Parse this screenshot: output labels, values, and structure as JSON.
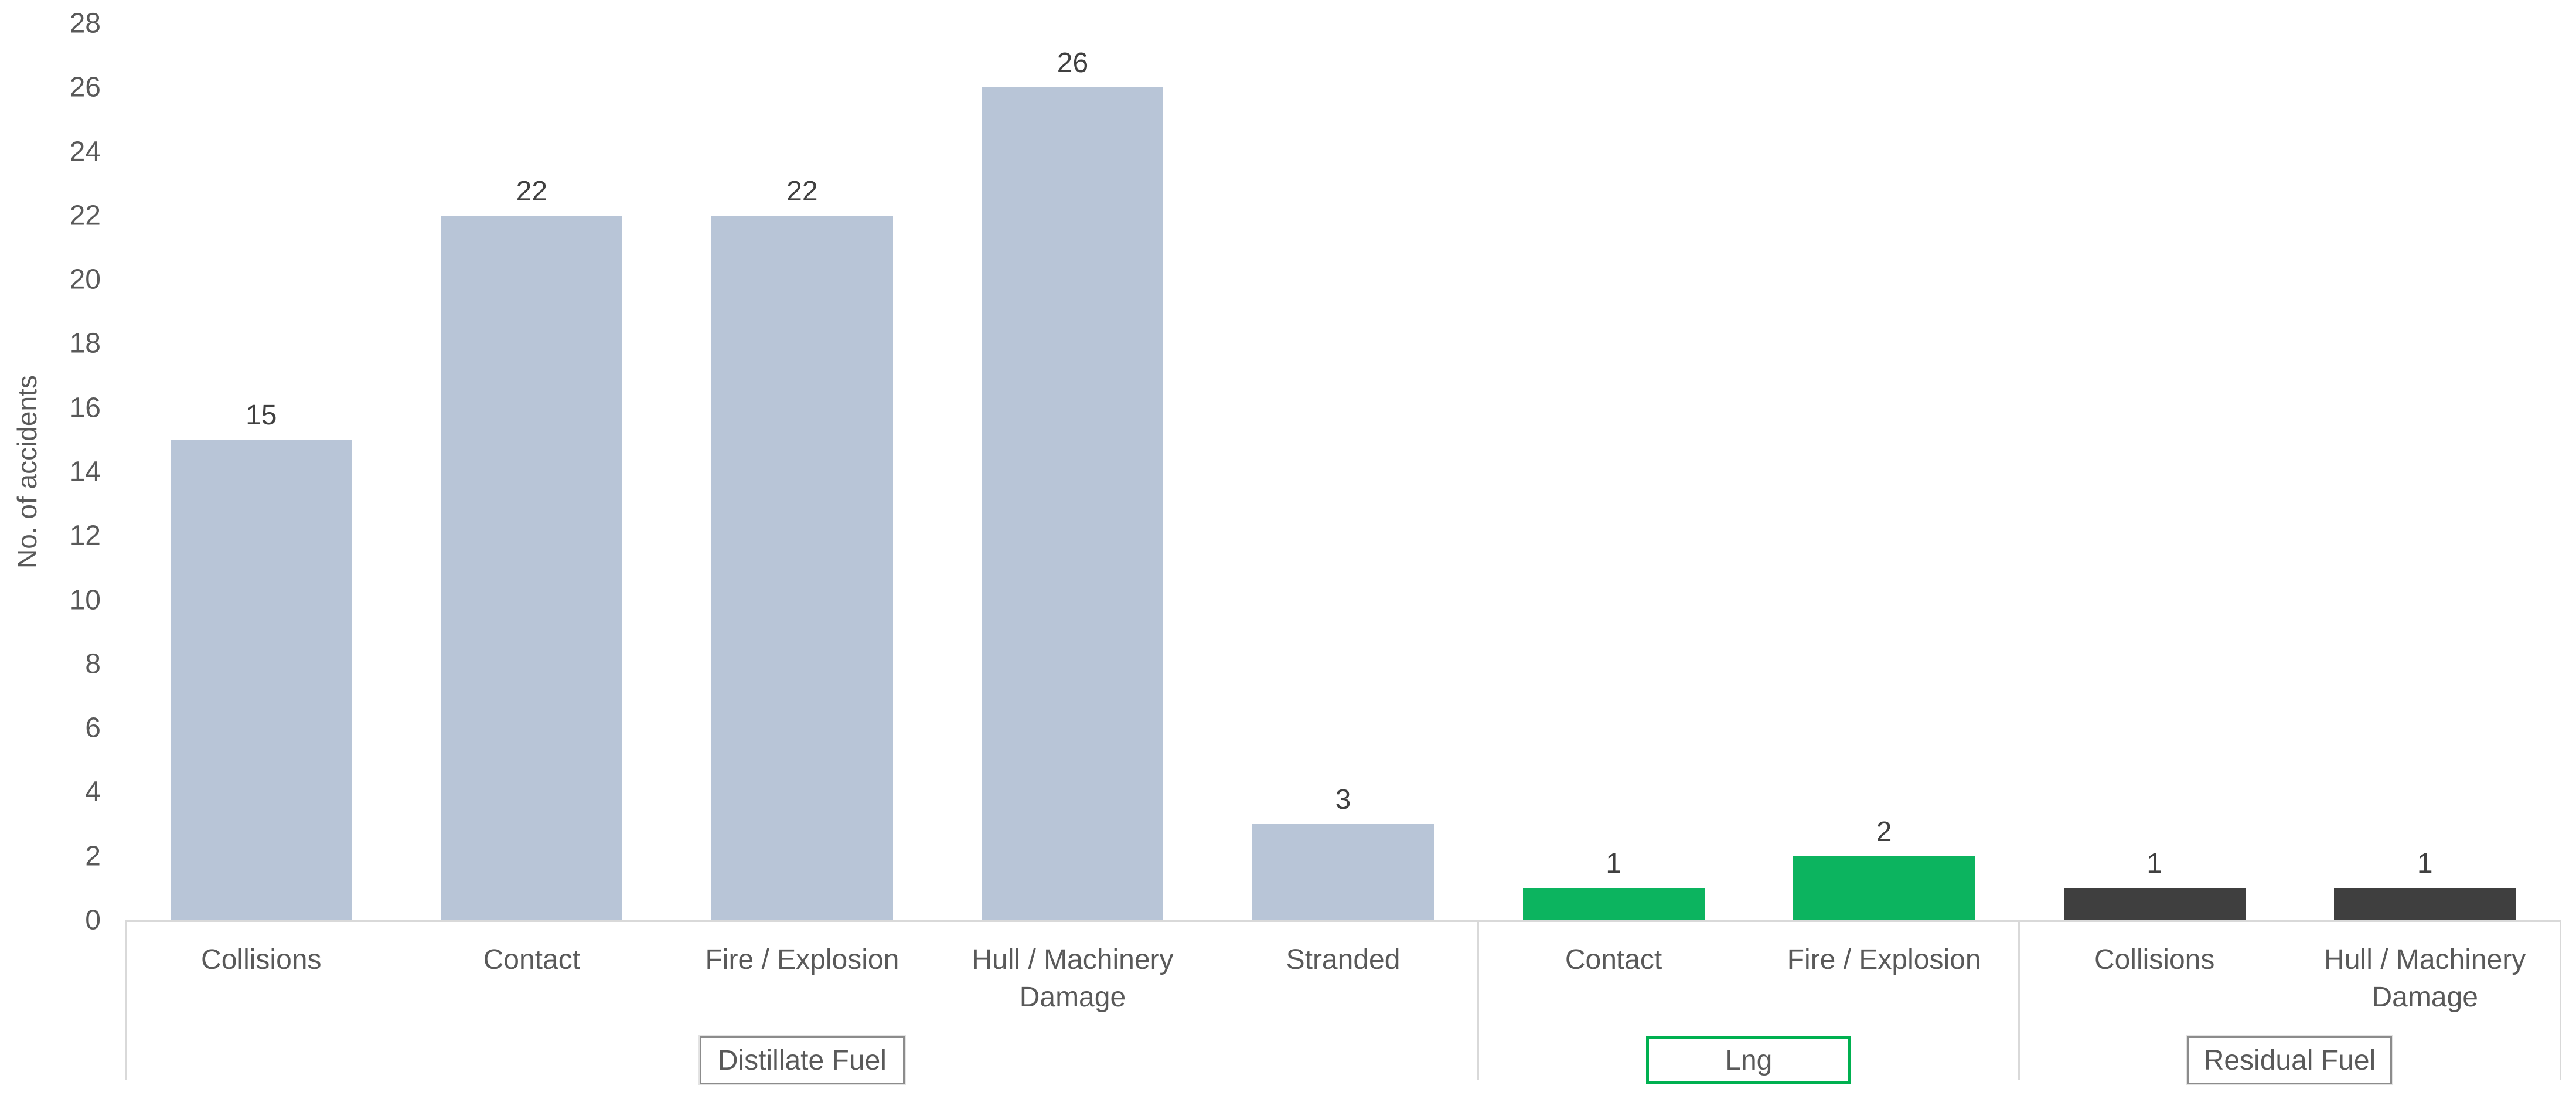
{
  "chart_data": {
    "type": "bar",
    "title": "",
    "xlabel": "",
    "ylabel": "No. of accidents",
    "ylim": [
      0,
      28
    ],
    "ytick_interval": 2,
    "grid": false,
    "legend": false,
    "groups": [
      {
        "label": "Distillate Fuel",
        "bar_color": "#b8c5d7",
        "box_border_color": "#8c8c8c",
        "categories": [
          "Collisions",
          "Contact",
          "Fire / Explosion",
          "Hull / Machinery Damage",
          "Stranded"
        ],
        "values": [
          15,
          22,
          22,
          26,
          3
        ]
      },
      {
        "label": "Lng",
        "bar_color": "#0cb45f",
        "box_border_color": "#00b050",
        "categories": [
          "Contact",
          "Fire / Explosion"
        ],
        "values": [
          1,
          2
        ]
      },
      {
        "label": "Residual Fuel",
        "bar_color": "#3f3f3f",
        "box_border_color": "#8c8c8c",
        "categories": [
          "Collisions",
          "Hull / Machinery Damage"
        ],
        "values": [
          1,
          1
        ]
      }
    ],
    "colors": {
      "axis_line": "#d9d9d9",
      "tick_label": "#595959",
      "data_label": "#404040",
      "category_label": "#595959",
      "group_label": "#595959"
    }
  }
}
